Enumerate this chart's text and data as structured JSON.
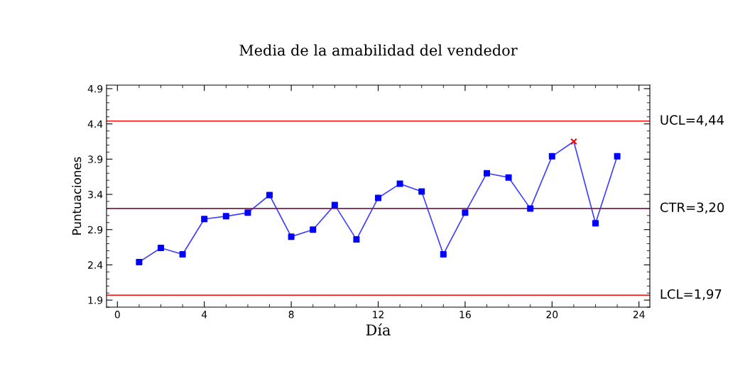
{
  "chart_data": {
    "type": "line",
    "title": "Media de la amabilidad del vendedor",
    "xlabel": "Día",
    "ylabel": "Puntuaciones",
    "x": [
      1,
      2,
      3,
      4,
      5,
      6,
      7,
      8,
      9,
      10,
      11,
      12,
      13,
      14,
      15,
      16,
      17,
      18,
      19,
      20,
      21,
      22,
      23
    ],
    "series": [
      {
        "color": "#4040ff",
        "marker": "none",
        "values": [
          2.44,
          2.64,
          2.55,
          3.05,
          3.09,
          3.14,
          3.39,
          2.8,
          2.9,
          3.25,
          2.76,
          3.35,
          3.55,
          3.44,
          2.55,
          3.14,
          3.7,
          3.64,
          3.2,
          3.94,
          4.15,
          2.99,
          3.94
        ]
      },
      {
        "type": "scatter",
        "color": "#0000ff",
        "marker": "square",
        "values": [
          2.44,
          2.64,
          2.55,
          3.05,
          3.09,
          3.14,
          3.39,
          2.8,
          2.9,
          3.25,
          2.76,
          3.35,
          3.55,
          3.44,
          2.55,
          3.14,
          3.7,
          3.64,
          3.2,
          3.94,
          null,
          2.99,
          3.94
        ]
      },
      {
        "type": "scatter",
        "color": "#ff0000",
        "marker": "cross",
        "values": [
          null,
          null,
          null,
          null,
          null,
          null,
          null,
          null,
          null,
          null,
          null,
          null,
          null,
          null,
          null,
          null,
          null,
          null,
          null,
          null,
          4.15,
          null,
          null
        ]
      }
    ],
    "xlim": [
      -0.5,
      24.5
    ],
    "xticks": [
      0,
      4,
      8,
      12,
      16,
      20,
      24
    ],
    "ylim": [
      1.8,
      4.95
    ],
    "yticks": [
      1.9,
      2.4,
      2.9,
      3.4,
      3.9,
      4.4,
      4.9
    ],
    "ref_lines": [
      {
        "axis": "y",
        "value": 4.44,
        "label": "UCL=4,44",
        "color": "#ff2020"
      },
      {
        "axis": "y",
        "value": 3.2,
        "label": "CTR=3,20",
        "color": "#7a1f50"
      },
      {
        "axis": "y",
        "value": 1.97,
        "label": "LCL=1,97",
        "color": "#ff2020"
      }
    ],
    "grid": false,
    "legend": false
  }
}
